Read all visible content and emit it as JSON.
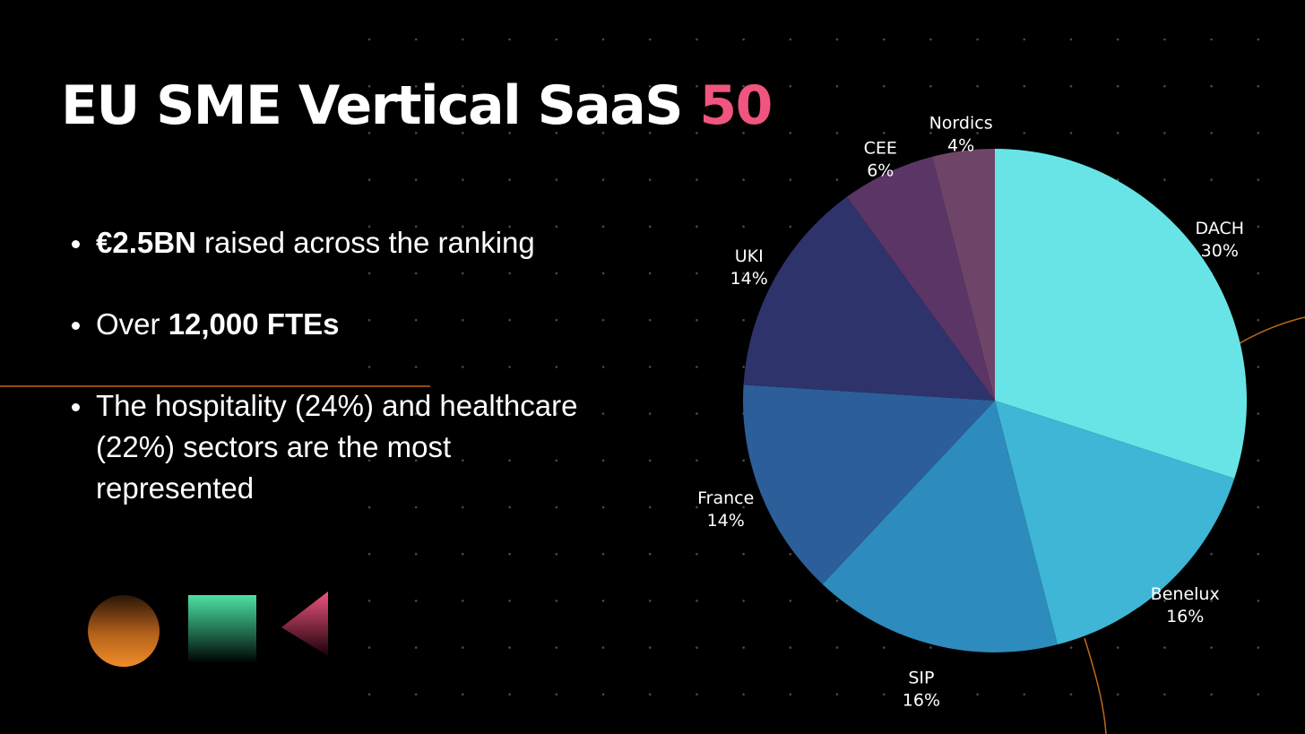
{
  "title": {
    "main": "EU SME Vertical SaaS",
    "accent": "50"
  },
  "bullets": [
    {
      "bold": "€2.5BN",
      "text": " raised across the ranking"
    },
    {
      "text": "Over ",
      "bold": "12,000 FTEs"
    },
    {
      "text": "The hospitality (24%) and healthcare (22%) sectors are the most represented"
    }
  ],
  "colors": {
    "background": "#000000",
    "accent": "#f0557f",
    "orange_line": "#e07b1e",
    "dots": "#4a4a4a"
  },
  "chart_data": {
    "type": "pie",
    "title": "",
    "slices": [
      {
        "name": "DACH",
        "value": 30,
        "label": "30%",
        "color": "#68e4e6"
      },
      {
        "name": "Benelux",
        "value": 16,
        "label": "16%",
        "color": "#3fb6d5"
      },
      {
        "name": "SIP",
        "value": 16,
        "label": "16%",
        "color": "#2e8bbd"
      },
      {
        "name": "France",
        "value": 14,
        "label": "14%",
        "color": "#2c5e99"
      },
      {
        "name": "UKI",
        "value": 14,
        "label": "14%",
        "color": "#2e336b"
      },
      {
        "name": "CEE",
        "value": 6,
        "label": "6%",
        "color": "#5b3566"
      },
      {
        "name": "Nordics",
        "value": 4,
        "label": "4%",
        "color": "#6e4569"
      }
    ],
    "start_angle_deg": 0,
    "direction": "clockwise",
    "legend": "none"
  }
}
